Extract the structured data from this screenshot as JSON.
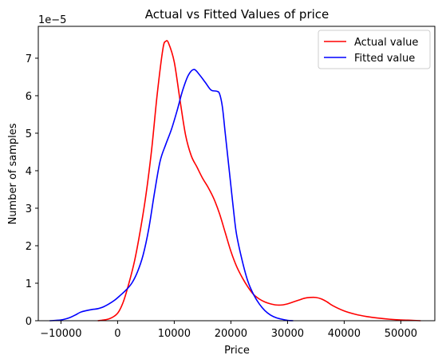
{
  "chart_data": {
    "type": "line",
    "title": "Actual vs Fitted Values of price",
    "xlabel": "Price",
    "ylabel": "Number of samples",
    "y_scale_label": "1e−5",
    "xlim": [
      -14000,
      56000
    ],
    "ylim": [
      0,
      7.85
    ],
    "x_ticks": [
      -10000,
      0,
      10000,
      20000,
      30000,
      40000,
      50000
    ],
    "x_tick_labels": [
      "−10000",
      "0",
      "10000",
      "20000",
      "30000",
      "40000",
      "50000"
    ],
    "y_ticks": [
      0,
      1,
      2,
      3,
      4,
      5,
      6,
      7
    ],
    "y_tick_labels": [
      "0",
      "1",
      "2",
      "3",
      "4",
      "5",
      "6",
      "7"
    ],
    "grid": false,
    "legend_position": "top-right",
    "series": [
      {
        "name": "Actual value",
        "color": "#ff0000",
        "points": [
          [
            -3500,
            0.0
          ],
          [
            -1500,
            0.05
          ],
          [
            0,
            0.2
          ],
          [
            1000,
            0.5
          ],
          [
            2000,
            1.0
          ],
          [
            3000,
            1.6
          ],
          [
            4000,
            2.4
          ],
          [
            5000,
            3.35
          ],
          [
            6000,
            4.55
          ],
          [
            7000,
            6.05
          ],
          [
            8000,
            7.25
          ],
          [
            8500,
            7.45
          ],
          [
            9000,
            7.4
          ],
          [
            10000,
            6.9
          ],
          [
            11000,
            5.9
          ],
          [
            12000,
            4.95
          ],
          [
            13000,
            4.4
          ],
          [
            14000,
            4.1
          ],
          [
            15000,
            3.8
          ],
          [
            16000,
            3.55
          ],
          [
            17000,
            3.25
          ],
          [
            18000,
            2.85
          ],
          [
            19000,
            2.35
          ],
          [
            20000,
            1.85
          ],
          [
            21000,
            1.45
          ],
          [
            22000,
            1.15
          ],
          [
            23000,
            0.9
          ],
          [
            24000,
            0.7
          ],
          [
            25000,
            0.58
          ],
          [
            26000,
            0.5
          ],
          [
            27000,
            0.45
          ],
          [
            28000,
            0.42
          ],
          [
            29000,
            0.42
          ],
          [
            30000,
            0.45
          ],
          [
            31000,
            0.5
          ],
          [
            32000,
            0.55
          ],
          [
            33000,
            0.6
          ],
          [
            34000,
            0.62
          ],
          [
            35000,
            0.62
          ],
          [
            36000,
            0.58
          ],
          [
            37000,
            0.5
          ],
          [
            38000,
            0.4
          ],
          [
            40000,
            0.26
          ],
          [
            42000,
            0.17
          ],
          [
            44000,
            0.11
          ],
          [
            46000,
            0.07
          ],
          [
            48000,
            0.04
          ],
          [
            50000,
            0.02
          ],
          [
            52000,
            0.01
          ],
          [
            53500,
            0.0
          ]
        ]
      },
      {
        "name": "Fitted value",
        "color": "#0000ff",
        "points": [
          [
            -12000,
            0.0
          ],
          [
            -10000,
            0.02
          ],
          [
            -8500,
            0.08
          ],
          [
            -7500,
            0.15
          ],
          [
            -6500,
            0.23
          ],
          [
            -5500,
            0.27
          ],
          [
            -4500,
            0.3
          ],
          [
            -3500,
            0.32
          ],
          [
            -2500,
            0.37
          ],
          [
            -1500,
            0.45
          ],
          [
            -500,
            0.55
          ],
          [
            500,
            0.68
          ],
          [
            1500,
            0.82
          ],
          [
            2500,
            1.0
          ],
          [
            3500,
            1.3
          ],
          [
            4500,
            1.75
          ],
          [
            5500,
            2.45
          ],
          [
            6500,
            3.4
          ],
          [
            7500,
            4.25
          ],
          [
            8500,
            4.7
          ],
          [
            9500,
            5.1
          ],
          [
            10500,
            5.6
          ],
          [
            11500,
            6.15
          ],
          [
            12500,
            6.55
          ],
          [
            13500,
            6.7
          ],
          [
            14500,
            6.55
          ],
          [
            15500,
            6.35
          ],
          [
            16500,
            6.15
          ],
          [
            17500,
            6.12
          ],
          [
            18000,
            6.05
          ],
          [
            18500,
            5.7
          ],
          [
            19000,
            5.0
          ],
          [
            19500,
            4.3
          ],
          [
            20000,
            3.6
          ],
          [
            20500,
            2.9
          ],
          [
            21000,
            2.3
          ],
          [
            22000,
            1.6
          ],
          [
            23000,
            1.05
          ],
          [
            24000,
            0.7
          ],
          [
            25000,
            0.45
          ],
          [
            26000,
            0.27
          ],
          [
            27000,
            0.15
          ],
          [
            28000,
            0.08
          ],
          [
            29000,
            0.04
          ],
          [
            30000,
            0.01
          ],
          [
            31000,
            0.0
          ]
        ]
      }
    ]
  }
}
